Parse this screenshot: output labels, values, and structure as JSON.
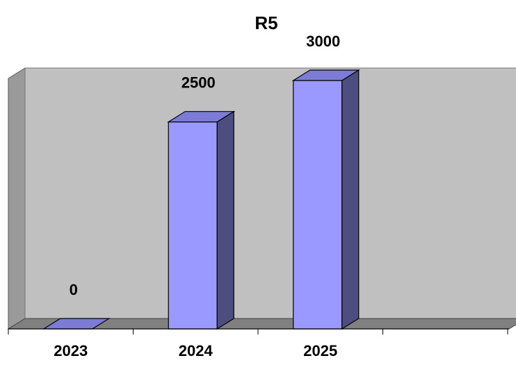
{
  "chart_data": {
    "type": "bar",
    "title": "R5",
    "categories": [
      "2023",
      "2024",
      "2025",
      ""
    ],
    "values": [
      0,
      2500,
      3000,
      null
    ],
    "data_labels": [
      "0",
      "2500",
      "3000",
      ""
    ],
    "xlabel": "",
    "ylabel": "",
    "ylim": [
      0,
      3000
    ],
    "grid": false,
    "legend": "none",
    "three_d": true,
    "colors": {
      "bar_front": "#9999ff",
      "bar_top": "#7c7cd6",
      "bar_side": "#4d4d80",
      "wall": "#c0c0c0",
      "floor": "#808080",
      "axis": "#000000"
    }
  }
}
